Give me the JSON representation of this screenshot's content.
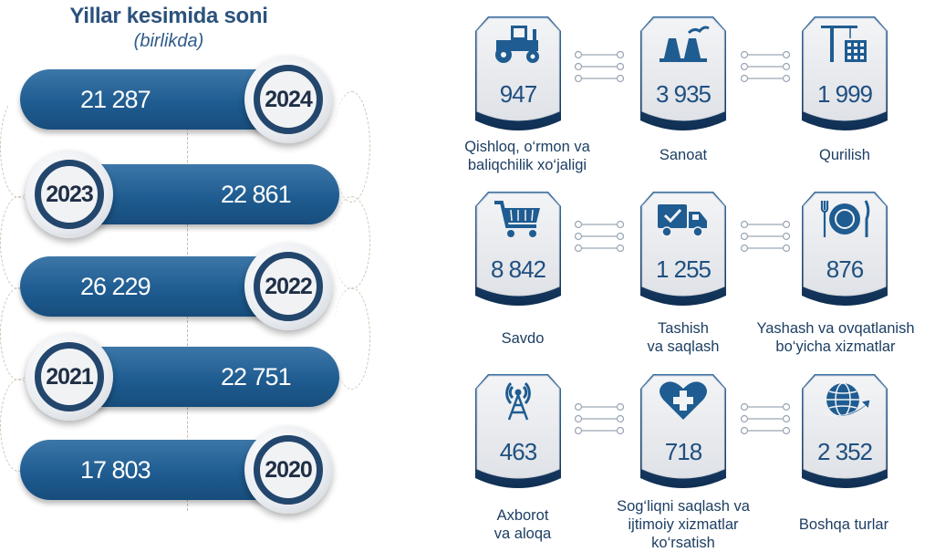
{
  "header": {
    "title": "Yillar kesimida soni",
    "subtitle": "(birlikda)"
  },
  "colors": {
    "primary": "#1f5c91",
    "dark": "#23466d",
    "badge_bg": "#eceef1"
  },
  "chart_data": [
    {
      "type": "bar",
      "title": "Yillar kesimida soni",
      "subtitle": "(birlikda)",
      "categories": [
        "2024",
        "2023",
        "2022",
        "2021",
        "2020"
      ],
      "values": [
        21287,
        22861,
        26229,
        22751,
        17803
      ],
      "value_labels": [
        "21 287",
        "22 861",
        "26 229",
        "22 751",
        "17 803"
      ]
    },
    {
      "type": "table",
      "categories": [
        "Qishloq, o‘rmon va baliqchilik xo‘jaligi",
        "Sanoat",
        "Qurilish",
        "Savdo",
        "Tashish va saqlash",
        "Yashash va ovqatlanish bo‘yicha xizmatlar",
        "Axborot va aloqa",
        "Sog‘liqni saqlash va ijtimoiy xizmatlar ko‘rsatish",
        "Boshqa turlar"
      ],
      "values": [
        947,
        3935,
        1999,
        8842,
        1255,
        876,
        463,
        718,
        2352
      ]
    }
  ],
  "years": [
    {
      "year": "2024",
      "value": "21 287"
    },
    {
      "year": "2023",
      "value": "22 861"
    },
    {
      "year": "2022",
      "value": "26 229"
    },
    {
      "year": "2021",
      "value": "22 751"
    },
    {
      "year": "2020",
      "value": "17 803"
    }
  ],
  "sectors": [
    {
      "icon": "tractor-icon",
      "value": "947",
      "label_lines": [
        "Qishloq, o‘rmon va",
        "baliqchilik xo‘jaligi"
      ]
    },
    {
      "icon": "factory-icon",
      "value": "3 935",
      "label_lines": [
        "Sanoat"
      ]
    },
    {
      "icon": "construction-crane-icon",
      "value": "1 999",
      "label_lines": [
        "Qurilish"
      ]
    },
    {
      "icon": "shopping-cart-icon",
      "value": "8 842",
      "label_lines": [
        "Savdo"
      ]
    },
    {
      "icon": "delivery-truck-icon",
      "value": "1 255",
      "label_lines": [
        "Tashish",
        "va saqlash"
      ]
    },
    {
      "icon": "plate-cutlery-icon",
      "value": "876",
      "label_lines": [
        "Yashash va ovqatlanish",
        "bo‘yicha xizmatlar"
      ]
    },
    {
      "icon": "antenna-tower-icon",
      "value": "463",
      "label_lines": [
        "Axborot",
        "va aloqa"
      ]
    },
    {
      "icon": "heart-medical-icon",
      "value": "718",
      "label_lines": [
        "Sog‘liqni saqlash va",
        "ijtimoiy xizmatlar",
        "ko‘rsatish"
      ]
    },
    {
      "icon": "globe-arrow-icon",
      "value": "2 352",
      "label_lines": [
        "Boshqa turlar"
      ]
    }
  ]
}
